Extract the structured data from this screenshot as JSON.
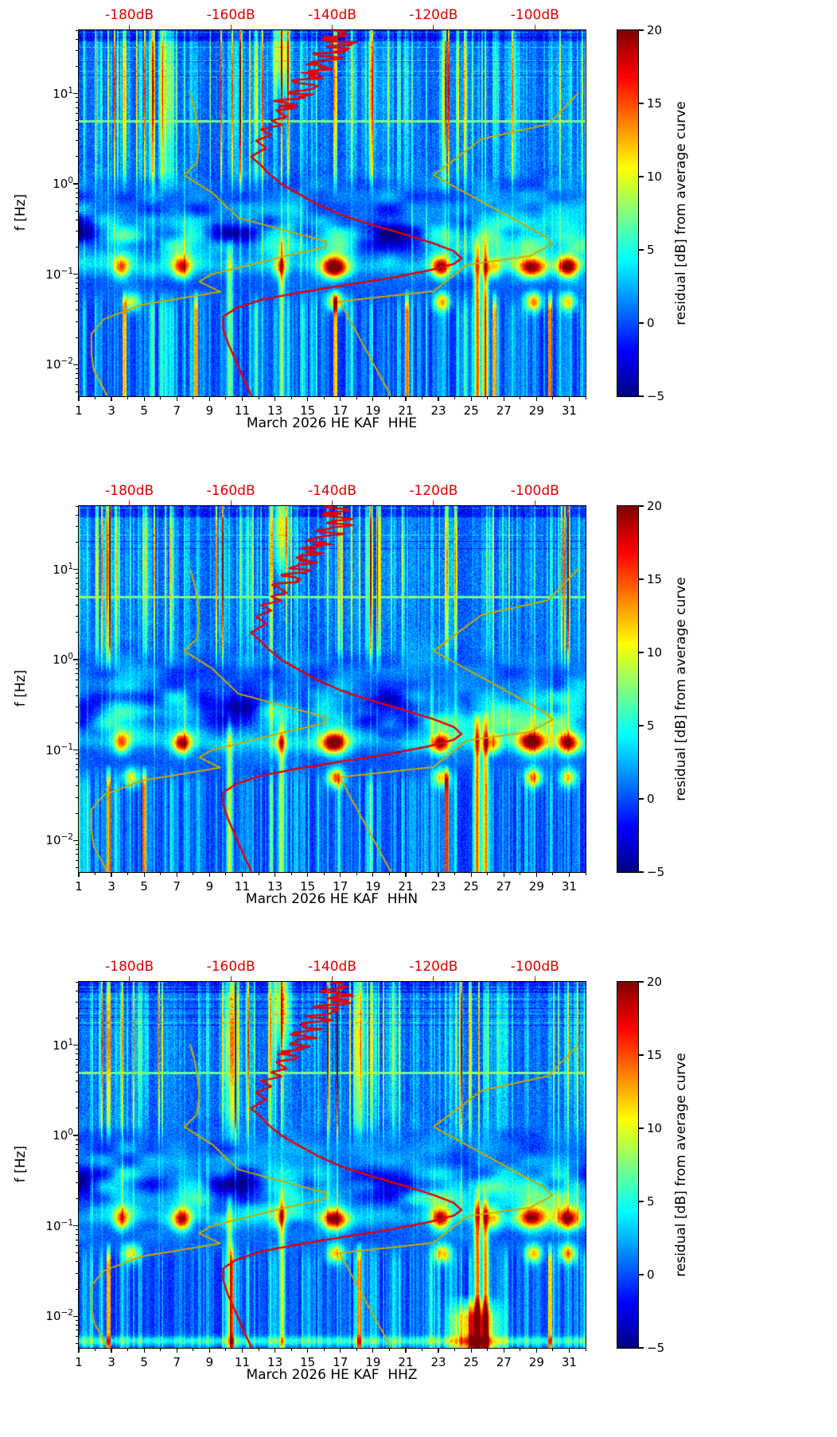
{
  "figure": {
    "background": "#ffffff"
  },
  "colors": {
    "median_curve": "#e60000",
    "noise_model_curve": "#c7ab00",
    "top_axis_text": "#dd0000",
    "axis_text": "#000000"
  },
  "top_axis": {
    "tick_labels": [
      "-180dB",
      "-160dB",
      "-140dB",
      "-120dB",
      "-100dB"
    ],
    "tick_values": [
      -180,
      -160,
      -140,
      -120,
      -100
    ],
    "range_db": [
      -190,
      -90
    ]
  },
  "x_axis": {
    "tick_labels": [
      "1",
      "3",
      "5",
      "7",
      "9",
      "11",
      "13",
      "15",
      "17",
      "19",
      "21",
      "23",
      "25",
      "27",
      "29",
      "31"
    ],
    "tick_values": [
      1,
      3,
      5,
      7,
      9,
      11,
      13,
      15,
      17,
      19,
      21,
      23,
      25,
      27,
      29,
      31
    ],
    "minor_tick_values": [
      2,
      4,
      6,
      8,
      10,
      12,
      14,
      16,
      18,
      20,
      22,
      24,
      26,
      28,
      30,
      32
    ],
    "range_days": [
      1,
      32
    ]
  },
  "y_axis": {
    "label": "f [Hz]",
    "tick_exponents": [
      1,
      0,
      -1,
      -2
    ],
    "range_log10_hz": [
      -2.35,
      1.7
    ]
  },
  "colorbar": {
    "label": "residual [dB] from average curve",
    "tick_labels": [
      "20",
      "15",
      "10",
      "5",
      "0",
      "−5"
    ],
    "tick_values": [
      20,
      15,
      10,
      5,
      0,
      -5
    ],
    "vmin": -5,
    "vmax": 20
  },
  "panels": [
    {
      "channel": "HHE",
      "xlabel": "March 2026 HE KAF  HHE",
      "seed": 11
    },
    {
      "channel": "HHN",
      "xlabel": "March 2026 HE KAF  HHN",
      "seed": 47
    },
    {
      "channel": "HHZ",
      "xlabel": "March 2026 HE KAF  HHZ",
      "seed": 83,
      "extra_bottom_blob": {
        "day": 25.2,
        "amp": 15
      },
      "bottom_band": true
    }
  ],
  "curves": {
    "median_psd_db": [
      [
        50,
        -140
      ],
      [
        44,
        -137
      ],
      [
        40,
        -142
      ],
      [
        36,
        -136
      ],
      [
        33,
        -141
      ],
      [
        30,
        -137
      ],
      [
        27,
        -143
      ],
      [
        24,
        -139
      ],
      [
        21,
        -145
      ],
      [
        19,
        -140
      ],
      [
        17,
        -146
      ],
      [
        15,
        -142
      ],
      [
        13.5,
        -147
      ],
      [
        12,
        -143
      ],
      [
        10.5,
        -148
      ],
      [
        9.5,
        -145
      ],
      [
        8.5,
        -150
      ],
      [
        7.5,
        -147
      ],
      [
        6.5,
        -151
      ],
      [
        5.5,
        -149
      ],
      [
        5,
        -152
      ],
      [
        4.5,
        -150
      ],
      [
        4,
        -154
      ],
      [
        3.5,
        -152
      ],
      [
        3,
        -155
      ],
      [
        2.5,
        -153
      ],
      [
        2,
        -156
      ],
      [
        1.6,
        -154
      ],
      [
        1.3,
        -152.5
      ],
      [
        1,
        -150
      ],
      [
        0.8,
        -147
      ],
      [
        0.6,
        -143
      ],
      [
        0.45,
        -138
      ],
      [
        0.35,
        -132
      ],
      [
        0.28,
        -126
      ],
      [
        0.22,
        -120
      ],
      [
        0.18,
        -116
      ],
      [
        0.15,
        -114.5
      ],
      [
        0.13,
        -116
      ],
      [
        0.11,
        -121
      ],
      [
        0.09,
        -129
      ],
      [
        0.075,
        -138
      ],
      [
        0.062,
        -147
      ],
      [
        0.052,
        -154
      ],
      [
        0.042,
        -159
      ],
      [
        0.034,
        -161.5
      ],
      [
        0.025,
        -161.5
      ],
      [
        0.017,
        -160.5
      ],
      [
        0.011,
        -159
      ],
      [
        0.007,
        -157.5
      ],
      [
        0.0046,
        -156
      ]
    ],
    "nlnm_db": [
      [
        10,
        -168
      ],
      [
        7,
        -167.2
      ],
      [
        4.6,
        -166.6
      ],
      [
        2.9,
        -166.2
      ],
      [
        1.7,
        -166.7
      ],
      [
        1.25,
        -169.2
      ],
      [
        0.8,
        -163.7
      ],
      [
        0.42,
        -158.5
      ],
      [
        0.23,
        -141.1
      ],
      [
        0.2,
        -141.3
      ],
      [
        0.16,
        -149
      ],
      [
        0.1,
        -163.8
      ],
      [
        0.083,
        -166.2
      ],
      [
        0.064,
        -162.1
      ],
      [
        0.046,
        -177.5
      ],
      [
        0.032,
        -185
      ],
      [
        0.022,
        -187.5
      ],
      [
        0.013,
        -187.5
      ],
      [
        0.0085,
        -187
      ],
      [
        0.006,
        -185.5
      ],
      [
        0.0046,
        -184.5
      ]
    ],
    "nhnm_db": [
      [
        10,
        -91.5
      ],
      [
        4.55,
        -97.4
      ],
      [
        3.13,
        -110.5
      ],
      [
        1.25,
        -120
      ],
      [
        0.263,
        -98
      ],
      [
        0.217,
        -96.5
      ],
      [
        0.159,
        -101
      ],
      [
        0.127,
        -113.5
      ],
      [
        0.065,
        -120
      ],
      [
        0.05,
        -138.5
      ],
      [
        0.0046,
        -128.5
      ]
    ]
  },
  "chart_data": {
    "type": "heatmap",
    "panels": [
      {
        "channel": "HHE",
        "xlabel": "March 2026 HE KAF  HHE"
      },
      {
        "channel": "HHN",
        "xlabel": "March 2026 HE KAF  HHN"
      },
      {
        "channel": "HHZ",
        "xlabel": "March 2026 HE KAF  HHZ"
      }
    ],
    "x": {
      "range_days": [
        1,
        32
      ],
      "tick_values": [
        1,
        3,
        5,
        7,
        9,
        11,
        13,
        15,
        17,
        19,
        21,
        23,
        25,
        27,
        29,
        31
      ]
    },
    "y": {
      "label": "f [Hz]",
      "scale": "log",
      "range_hz": [
        0.0045,
        50
      ]
    },
    "z": {
      "label": "residual [dB] from average curve",
      "range_db": [
        -5,
        20
      ],
      "colormap": "jet"
    },
    "top_axis_db": {
      "range": [
        -190,
        -90
      ],
      "tick_values": [
        -180,
        -160,
        -140,
        -120,
        -100
      ]
    },
    "overlay_curves": [
      {
        "name": "median-psd",
        "color_key": "median_curve",
        "points": "curves.median_psd_db"
      },
      {
        "name": "low-noise-model",
        "color_key": "noise_model_curve",
        "points": "curves.nlnm_db"
      },
      {
        "name": "high-noise-model",
        "color_key": "noise_model_curve",
        "points": "curves.nhnm_db"
      }
    ],
    "heatmap_features": {
      "weekend_quiet_days": [
        1,
        7,
        8,
        14,
        15,
        21,
        22,
        28,
        29
      ],
      "microseism_peak_days": [
        3.6,
        7.3,
        13.3,
        16.6,
        23.1,
        26.3,
        28.7,
        30.9
      ],
      "microseism_peak_amps_db": [
        10,
        15,
        8,
        19,
        17,
        8,
        19,
        18
      ],
      "microseism_primary_hz": 0.12,
      "secondary_peak_days": [
        4.2,
        16.7,
        23.2,
        28.8,
        30.9
      ],
      "secondary_peak_hz": 0.05,
      "quiet_band_hz": 0.3,
      "persistent_line_hz": 5.0,
      "bright_column_days": [
        10.2,
        13.4,
        25.35,
        25.85
      ]
    }
  }
}
